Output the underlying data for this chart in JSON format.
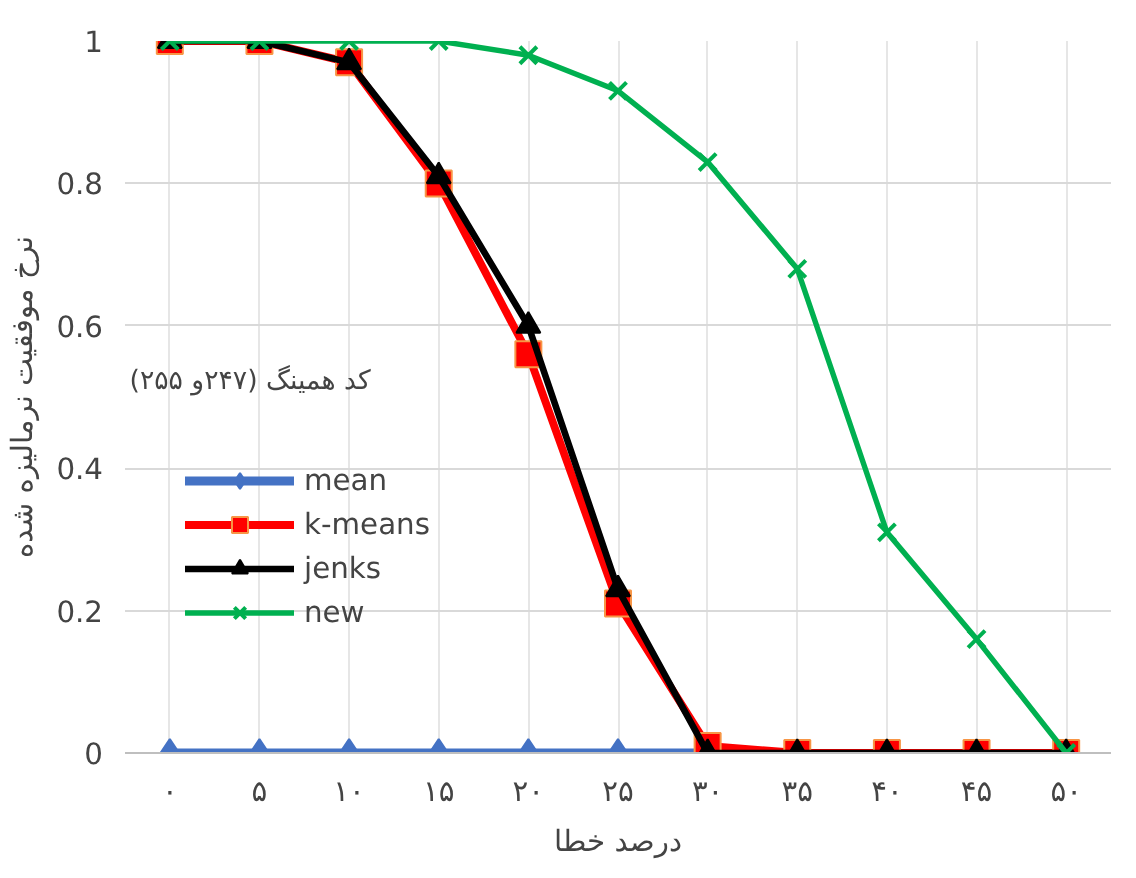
{
  "chart_data": {
    "type": "line",
    "title": "کد همینگ (۲۴۷و ۲۵۵)",
    "xlabel": "درصد خطا",
    "ylabel": "نرخ موفقیت نرمالیزه شده",
    "categories": [
      "۰",
      "۵",
      "۱۰",
      "۱۵",
      "۲۰",
      "۲۵",
      "۳۰",
      "۳۵",
      "۴۰",
      "۴۵",
      "۵۰"
    ],
    "series": [
      {
        "name": "mean",
        "color": "#4472c4",
        "marker": "diamond",
        "values": [
          0,
          0,
          0,
          0,
          0,
          0,
          0,
          null,
          null,
          null,
          null
        ]
      },
      {
        "name": "k-means",
        "color": "#ff0000",
        "marker": "square",
        "values": [
          1,
          1,
          0.97,
          0.8,
          0.56,
          0.21,
          0.01,
          0,
          0,
          0,
          0
        ]
      },
      {
        "name": "jenks",
        "color": "#000000",
        "marker": "triangle",
        "values": [
          1,
          1,
          0.97,
          0.81,
          0.6,
          0.23,
          0,
          0,
          0,
          0,
          0
        ]
      },
      {
        "name": "new",
        "color": "#00b050",
        "marker": "cross",
        "values": [
          1,
          1,
          1,
          1,
          0.98,
          0.93,
          0.83,
          0.68,
          0.31,
          0.16,
          0
        ]
      }
    ],
    "ylim": [
      0,
      1
    ],
    "yticks": [
      0,
      0.2,
      0.4,
      0.6,
      0.8,
      1
    ],
    "grid": true,
    "legend": "left",
    "line_style": "solid"
  }
}
